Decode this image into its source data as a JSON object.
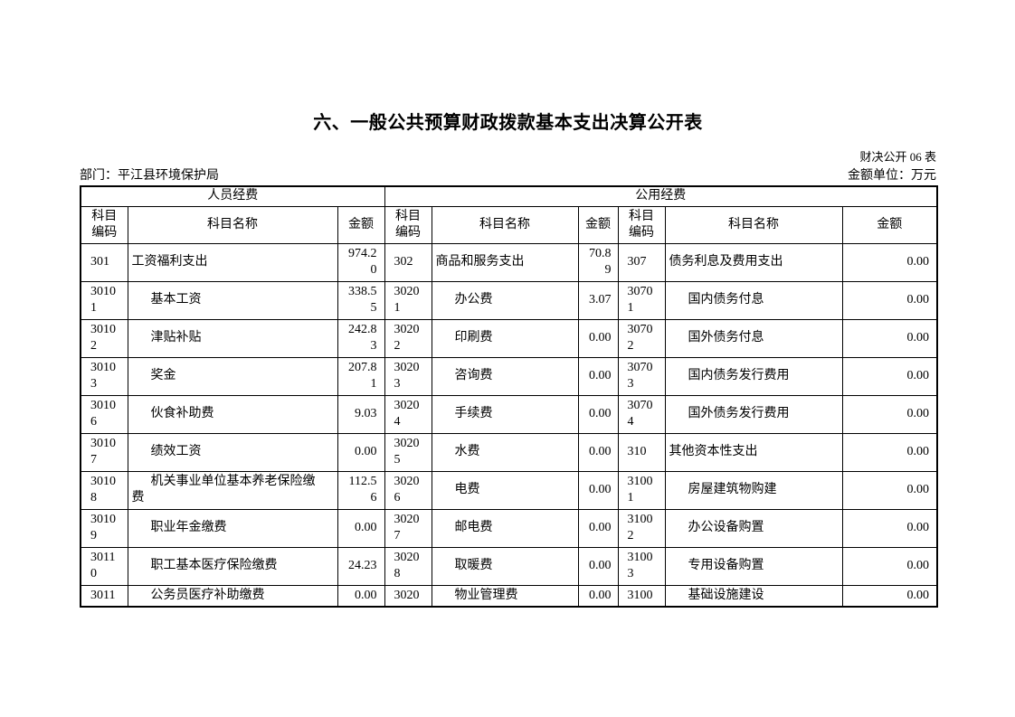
{
  "page": {
    "title": "六、一般公共预算财政拨款基本支出决算公开表",
    "form_code": "财决公开 06 表",
    "department": "部门：平江县环境保护局",
    "unit": "金额单位：万元"
  },
  "table": {
    "section_headers": [
      "人员经费",
      "公用经费"
    ],
    "column_headers": [
      "科目编码",
      "科目名称",
      "金额"
    ],
    "rows": [
      {
        "left": {
          "code": "301",
          "name": "工资福利支出",
          "amount": "974.20",
          "level": 1
        },
        "mid": {
          "code": "302",
          "name": "商品和服务支出",
          "amount": "70.89",
          "level": 1
        },
        "right": {
          "code": "307",
          "name": "债务利息及费用支出",
          "amount": "0.00",
          "level": 1
        }
      },
      {
        "left": {
          "code": "30101",
          "name": "基本工资",
          "amount": "338.55",
          "level": 2
        },
        "mid": {
          "code": "30201",
          "name": "办公费",
          "amount": "3.07",
          "level": 2
        },
        "right": {
          "code": "30701",
          "name": "国内债务付息",
          "amount": "0.00",
          "level": 2
        }
      },
      {
        "left": {
          "code": "30102",
          "name": "津贴补贴",
          "amount": "242.83",
          "level": 2
        },
        "mid": {
          "code": "30202",
          "name": "印刷费",
          "amount": "0.00",
          "level": 2
        },
        "right": {
          "code": "30702",
          "name": "国外债务付息",
          "amount": "0.00",
          "level": 2
        }
      },
      {
        "left": {
          "code": "30103",
          "name": "奖金",
          "amount": "207.81",
          "level": 2
        },
        "mid": {
          "code": "30203",
          "name": "咨询费",
          "amount": "0.00",
          "level": 2
        },
        "right": {
          "code": "30703",
          "name": "国内债务发行费用",
          "amount": "0.00",
          "level": 2
        }
      },
      {
        "left": {
          "code": "30106",
          "name": "伙食补助费",
          "amount": "9.03",
          "level": 2
        },
        "mid": {
          "code": "30204",
          "name": "手续费",
          "amount": "0.00",
          "level": 2
        },
        "right": {
          "code": "30704",
          "name": "国外债务发行费用",
          "amount": "0.00",
          "level": 2
        }
      },
      {
        "left": {
          "code": "30107",
          "name": "绩效工资",
          "amount": "0.00",
          "level": 2
        },
        "mid": {
          "code": "30205",
          "name": "水费",
          "amount": "0.00",
          "level": 2
        },
        "right": {
          "code": "310",
          "name": "其他资本性支出",
          "amount": "0.00",
          "level": 1
        }
      },
      {
        "left": {
          "code": "30108",
          "name": "机关事业单位基本养老保险缴费",
          "amount": "112.56",
          "level": 2
        },
        "mid": {
          "code": "30206",
          "name": "电费",
          "amount": "0.00",
          "level": 2
        },
        "right": {
          "code": "31001",
          "name": "房屋建筑物购建",
          "amount": "0.00",
          "level": 2
        }
      },
      {
        "left": {
          "code": "30109",
          "name": "职业年金缴费",
          "amount": "0.00",
          "level": 2
        },
        "mid": {
          "code": "30207",
          "name": "邮电费",
          "amount": "0.00",
          "level": 2
        },
        "right": {
          "code": "31002",
          "name": "办公设备购置",
          "amount": "0.00",
          "level": 2
        }
      },
      {
        "left": {
          "code": "30110",
          "name": "职工基本医疗保险缴费",
          "amount": "24.23",
          "level": 2
        },
        "mid": {
          "code": "30208",
          "name": "取暖费",
          "amount": "0.00",
          "level": 2
        },
        "right": {
          "code": "31003",
          "name": "专用设备购置",
          "amount": "0.00",
          "level": 2
        }
      },
      {
        "left": {
          "code": "3011",
          "name": "公务员医疗补助缴费",
          "amount": "0.00",
          "level": 2
        },
        "mid": {
          "code": "3020",
          "name": "物业管理费",
          "amount": "0.00",
          "level": 2
        },
        "right": {
          "code": "3100",
          "name": "基础设施建设",
          "amount": "0.00",
          "level": 2
        }
      }
    ]
  }
}
